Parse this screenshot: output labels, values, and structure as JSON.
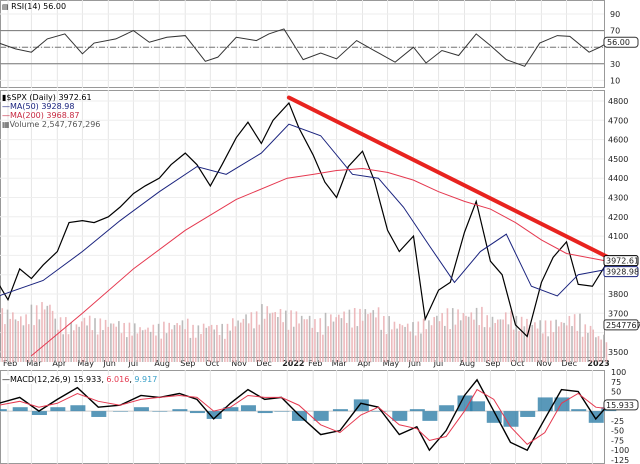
{
  "chart_data": [
    {
      "type": "line",
      "panel": "rsi",
      "title": "RSI(14) 56.00",
      "current_value_label": "56.00",
      "ylim": [
        0,
        100
      ],
      "y_ticks": [
        90,
        70,
        50,
        30,
        10
      ],
      "reference_lines": [
        70,
        50,
        30
      ],
      "x": [
        "2021-01-21",
        "2021-02-10",
        "2021-03-01",
        "2021-03-20",
        "2021-04-10",
        "2021-05-01",
        "2021-05-15",
        "2021-06-10",
        "2021-07-01",
        "2021-07-20",
        "2021-08-10",
        "2021-09-01",
        "2021-09-25",
        "2021-10-10",
        "2021-11-01",
        "2021-11-25",
        "2021-12-10",
        "2021-12-28",
        "2022-01-20",
        "2022-02-10",
        "2022-03-01",
        "2022-03-25",
        "2022-04-15",
        "2022-05-10",
        "2022-06-01",
        "2022-06-16",
        "2022-07-05",
        "2022-07-25",
        "2022-08-15",
        "2022-09-01",
        "2022-09-20",
        "2022-10-12",
        "2022-10-30",
        "2022-11-20",
        "2022-12-05",
        "2022-12-28",
        "2023-01-10",
        "2023-01-20"
      ],
      "values": [
        55,
        48,
        44,
        60,
        66,
        42,
        55,
        60,
        70,
        56,
        62,
        64,
        33,
        38,
        62,
        58,
        66,
        72,
        35,
        43,
        36,
        58,
        46,
        32,
        50,
        31,
        46,
        40,
        66,
        52,
        35,
        27,
        55,
        64,
        63,
        44,
        50,
        56
      ]
    },
    {
      "type": "line",
      "panel": "price",
      "title": "$SPX (Daily) 3972.61",
      "ylim": [
        3450,
        4850
      ],
      "y_ticks": [
        4800,
        4700,
        4600,
        4500,
        4400,
        4300,
        4200,
        4100,
        4000,
        3900,
        3800,
        3700,
        3600,
        3500
      ],
      "x_ticks": [
        "Feb",
        "Mar",
        "Apr",
        "May",
        "Jun",
        "Jul",
        "Aug",
        "Sep",
        "Oct",
        "Nov",
        "Dec",
        "2022",
        "Feb",
        "Mar",
        "Apr",
        "May",
        "Jun",
        "Jul",
        "Aug",
        "Sep",
        "Oct",
        "Nov",
        "Dec",
        "2023"
      ],
      "grid": true,
      "price_label": "3972.61",
      "ma50_label": "3928.98",
      "volume_label": "2547767",
      "series": [
        {
          "name": "$SPX (Daily) 3972.61",
          "color": "#000000",
          "x": [
            "2021-01-21",
            "2021-02-01",
            "2021-02-15",
            "2021-03-01",
            "2021-03-15",
            "2021-04-01",
            "2021-04-15",
            "2021-05-01",
            "2021-05-15",
            "2021-06-01",
            "2021-06-15",
            "2021-07-01",
            "2021-07-15",
            "2021-08-01",
            "2021-08-15",
            "2021-09-01",
            "2021-09-15",
            "2021-10-01",
            "2021-10-15",
            "2021-11-01",
            "2021-11-15",
            "2021-12-01",
            "2021-12-15",
            "2022-01-03",
            "2022-01-15",
            "2022-02-01",
            "2022-02-15",
            "2022-03-01",
            "2022-03-15",
            "2022-04-01",
            "2022-04-15",
            "2022-05-01",
            "2022-05-15",
            "2022-06-01",
            "2022-06-15",
            "2022-07-01",
            "2022-07-15",
            "2022-08-01",
            "2022-08-15",
            "2022-09-01",
            "2022-09-15",
            "2022-10-01",
            "2022-10-15",
            "2022-11-01",
            "2022-11-15",
            "2022-12-01",
            "2022-12-15",
            "2023-01-01",
            "2023-01-20"
          ],
          "values": [
            3850,
            3770,
            3930,
            3880,
            3950,
            4020,
            4170,
            4180,
            4170,
            4200,
            4250,
            4320,
            4360,
            4400,
            4470,
            4530,
            4470,
            4360,
            4470,
            4610,
            4690,
            4580,
            4700,
            4790,
            4660,
            4520,
            4380,
            4300,
            4460,
            4540,
            4390,
            4130,
            4020,
            4100,
            3670,
            3820,
            3860,
            4120,
            4280,
            3970,
            3900,
            3640,
            3580,
            3860,
            3990,
            4070,
            3850,
            3840,
            3972.61
          ]
        },
        {
          "name": "MA(50) 3928.98",
          "color": "#1a237e",
          "x": [
            "2021-01-21",
            "2021-03-15",
            "2021-05-01",
            "2021-06-15",
            "2021-08-01",
            "2021-09-15",
            "2021-10-20",
            "2021-12-01",
            "2022-01-03",
            "2022-02-10",
            "2022-03-20",
            "2022-04-20",
            "2022-05-20",
            "2022-06-20",
            "2022-07-20",
            "2022-08-20",
            "2022-09-20",
            "2022-10-20",
            "2022-11-20",
            "2022-12-15",
            "2023-01-20"
          ],
          "values": [
            3790,
            3870,
            4020,
            4180,
            4330,
            4460,
            4420,
            4530,
            4680,
            4620,
            4420,
            4400,
            4250,
            4050,
            3860,
            4020,
            4110,
            3840,
            3790,
            3900,
            3929
          ]
        },
        {
          "name": "MA(200) 3968.87",
          "color": "#e53950",
          "x": [
            "2021-03-01",
            "2021-05-01",
            "2021-07-01",
            "2021-09-01",
            "2021-11-01",
            "2022-01-01",
            "2022-02-01",
            "2022-03-01",
            "2022-04-01",
            "2022-05-01",
            "2022-06-01",
            "2022-07-01",
            "2022-08-01",
            "2022-09-01",
            "2022-10-01",
            "2022-11-01",
            "2022-12-01",
            "2023-01-20"
          ],
          "values": [
            3480,
            3700,
            3930,
            4130,
            4290,
            4400,
            4420,
            4440,
            4450,
            4430,
            4390,
            4330,
            4280,
            4240,
            4170,
            4080,
            4010,
            3969
          ]
        },
        {
          "name": "trendline",
          "color": "#e8231f",
          "x": [
            "2022-01-03",
            "2023-01-20"
          ],
          "values": [
            4818,
            3990
          ]
        }
      ],
      "volume": {
        "name": "Volume 2,547,767,296",
        "values_billions": [
          4.8,
          4.3,
          5.1,
          5.6,
          4.0,
          3.6,
          4.2,
          3.9,
          3.8,
          3.5,
          3.3,
          3.4,
          3.6,
          3.9,
          3.3,
          3.6,
          3.4,
          4.0,
          4.5,
          5.2,
          4.9,
          4.6,
          4.4,
          3.9,
          4.4,
          4.7,
          4.8,
          5.0,
          4.1,
          3.7,
          3.6,
          3.9,
          4.5,
          4.8,
          4.7,
          4.9,
          4.2,
          4.6,
          4.1,
          3.8,
          3.7,
          3.9,
          4.3,
          3.4,
          2.5
        ]
      }
    },
    {
      "type": "line",
      "panel": "macd",
      "title": "MACD(12,26,9)",
      "values_label": [
        "15.933",
        "6.016",
        "9.917"
      ],
      "current_value_label": "15.933",
      "ylim": [
        -125,
        100
      ],
      "y_ticks": [
        100,
        75,
        50,
        25,
        0,
        -25,
        -50,
        -75,
        -100,
        -125
      ],
      "x": [
        "2021-01-21",
        "2021-02-15",
        "2021-03-10",
        "2021-04-01",
        "2021-04-25",
        "2021-05-20",
        "2021-06-15",
        "2021-07-10",
        "2021-08-01",
        "2021-08-25",
        "2021-09-15",
        "2021-10-05",
        "2021-10-25",
        "2021-11-15",
        "2021-12-05",
        "2021-12-25",
        "2022-01-15",
        "2022-02-10",
        "2022-03-05",
        "2022-03-30",
        "2022-04-20",
        "2022-05-15",
        "2022-06-05",
        "2022-06-20",
        "2022-07-10",
        "2022-08-01",
        "2022-08-16",
        "2022-09-05",
        "2022-09-25",
        "2022-10-15",
        "2022-11-05",
        "2022-11-25",
        "2022-12-15",
        "2023-01-05",
        "2023-01-20"
      ],
      "series": [
        {
          "name": "MACD",
          "color": "#000000",
          "values": [
            20,
            35,
            0,
            30,
            60,
            10,
            15,
            40,
            35,
            45,
            30,
            -20,
            20,
            55,
            30,
            35,
            -10,
            -60,
            -50,
            20,
            10,
            -60,
            -40,
            -100,
            -50,
            40,
            80,
            0,
            -80,
            -100,
            -20,
            55,
            50,
            -20,
            16
          ]
        },
        {
          "name": "Signal",
          "color": "#e53950",
          "values": [
            15,
            25,
            10,
            20,
            45,
            25,
            15,
            30,
            35,
            40,
            35,
            0,
            10,
            40,
            35,
            35,
            15,
            -35,
            -55,
            -10,
            10,
            -35,
            -45,
            -75,
            -65,
            0,
            55,
            30,
            -40,
            -85,
            -55,
            20,
            45,
            10,
            6
          ]
        },
        {
          "name": "Histogram",
          "color": "#2f7ea8",
          "values": [
            5,
            10,
            -10,
            10,
            15,
            -15,
            0,
            10,
            0,
            5,
            -5,
            -20,
            10,
            15,
            -5,
            0,
            -25,
            -25,
            5,
            30,
            0,
            -25,
            5,
            -25,
            15,
            40,
            25,
            -30,
            -40,
            -15,
            35,
            35,
            5,
            -30,
            10
          ]
        }
      ]
    }
  ]
}
